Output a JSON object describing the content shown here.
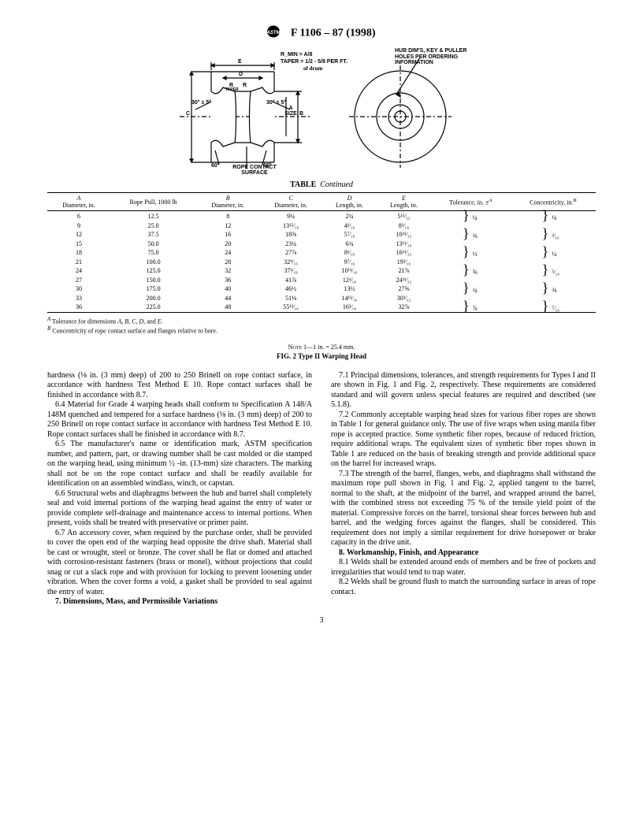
{
  "header": {
    "designation": "F 1106 – 87 (1998)"
  },
  "diagram": {
    "rmin_label": "R_MIN = A/8",
    "taper_label": "TAPER = 1/2 - 5/8 PER FT.",
    "of_drum": "of drum",
    "hub_label": "HUB DIM'S, KEY & PULLER HOLES PER ORDERING INFORMATION",
    "angle1": "30° ± 5°",
    "angle2": "30° ± 5°",
    "angle60a": "60°",
    "angle60b": "60°",
    "rope_contact": "ROPE CONTACT SURFACE",
    "a_size": "A SIZE",
    "labelE": "E",
    "labelD": "D",
    "labelR": "R",
    "labelTaper": "TAPER",
    "labelC": "C",
    "labelB": "B"
  },
  "table": {
    "title_bold": "TABLE",
    "title_italic": "Continued",
    "headers": {
      "col1a": "A",
      "col1b": "Diameter, in.",
      "col2": "Rope Pull, 1000 lb",
      "col3a": "B",
      "col3b": "Diameter, in.",
      "col4a": "C",
      "col4b": "Diameter, in.",
      "col5a": "D",
      "col5b": "Length, in.",
      "col6a": "E",
      "col6b": "Length, in.",
      "col7": "Tolerance, in. ±",
      "col7sup": "A",
      "col8": "Concentricity, in.",
      "col8sup": "B"
    },
    "rows": [
      {
        "a": "6",
        "rp": "12.5",
        "b": "8",
        "c": "9¼",
        "d": "2¾",
        "e": "5¹⁵⁄₃₂",
        "tol": "¼",
        "con": "⅛"
      },
      {
        "a": "9",
        "rp": "25.0",
        "b": "12",
        "c": "13¹⁵⁄₁₆",
        "d": "4¹⁄₁₆",
        "e": "8³⁄₁₆",
        "tol": "",
        "con": ""
      },
      {
        "a": "12",
        "rp": "37.5",
        "b": "16",
        "c": "18⅝",
        "d": "5⁷⁄₁₆",
        "e": "10³¹⁄₃₂",
        "tol": "⅜",
        "con": "³⁄₁₆"
      },
      {
        "a": "15",
        "rp": "50.0",
        "b": "20",
        "c": "23¼",
        "d": "6¾",
        "e": "13¹¹⁄₁₆",
        "tol": "",
        "con": ""
      },
      {
        "a": "18",
        "rp": "75.0",
        "b": "24",
        "c": "27⅞",
        "d": "8¹⁄₁₆",
        "e": "16¹³⁄₃₂",
        "tol": "½",
        "con": "¼"
      },
      {
        "a": "21",
        "rp": "100.0",
        "b": "28",
        "c": "32⁹⁄₁₆",
        "d": "9⁷⁄₁₆",
        "e": "19³⁄₁₆",
        "tol": "",
        "con": ""
      },
      {
        "a": "24",
        "rp": "125.0",
        "b": "32",
        "c": "37³⁄₁₆",
        "d": "10¹³⁄₁₆",
        "e": "21⅞",
        "tol": "⅝",
        "con": "⁵⁄₁₆"
      },
      {
        "a": "27",
        "rp": "150.0",
        "b": "36",
        "c": "41⅞",
        "d": "12³⁄₁₆",
        "e": "24³¹⁄₃₂",
        "tol": "",
        "con": ""
      },
      {
        "a": "30",
        "rp": "175.0",
        "b": "40",
        "c": "46½",
        "d": "13½",
        "e": "27⅝",
        "tol": "¾",
        "con": "⅜"
      },
      {
        "a": "33",
        "rp": "200.0",
        "b": "44",
        "c": "51⅛",
        "d": "14¹³⁄₁₆",
        "e": "30³⁄₃₂",
        "tol": "",
        "con": ""
      },
      {
        "a": "36",
        "rp": "225.0",
        "b": "48",
        "c": "55¹³⁄₁₆",
        "d": "16³⁄₁₆",
        "e": "32⅞",
        "tol": "⅞",
        "con": "⁷⁄₁₆"
      }
    ],
    "footnoteA_sup": "A",
    "footnoteA": " Tolerance for dimensions A, B, C, D, and E.",
    "footnoteB_sup": "B",
    "footnoteB": " Concentricity of rope contact surface and flanges relative to bore."
  },
  "figcaption": {
    "note": "NOTE 1—1 in. = 25.4 mm.",
    "title": "FIG. 2 Type II Warping Head"
  },
  "body": {
    "p1": "hardness (⅛ in. (3 mm) deep) of 200 to 250 Brinell on rope contact surface, in accordance with hardness Test Method E 10. Rope contact surfaces shall be finished in accordance with 8.7.",
    "p2": "6.4 Material for Grade 4 warping heads shall conform to Specification A 148/A 148M quenched and tempered for a surface hardness (⅛ in. (3 mm) deep) of 200 to 250 Brinell on rope contact surface in accordance with hardness Test Method E 10. Rope contact surfaces shall be finished in accordance with 8.7.",
    "p3": "6.5 The manufacturer's name or identification mark, ASTM specification number, and pattern, part, or drawing number shall be cast molded or die stamped on the warping head, using minimum ½ -in. (13-mm) size characters. The marking shall not be on the rope contact surface and shall be readily available for identification on an assembled windlass, winch, or capstan.",
    "p4": "6.6 Structural webs and diaphragms between the hub and barrel shall completely seal and void internal portions of the warping head against the entry of water or provide complete self-drainage and maintenance access to internal portions. When present, voids shall be treated with preservative or primer paint.",
    "p5": "6.7 An accessory cover, when required by the purchase order, shall be provided to cover the open end of the warping head opposite the drive shaft. Material shall be cast or wrought, steel or bronze. The cover shall be flat or domed and attached with corrosion-resistant fasteners (brass or monel), without projections that could snag or cut a slack rope and with provision for locking to prevent loosening under vibration. When the cover forms a void, a gasket shall be provided to seal against the entry of water.",
    "s7": "7. Dimensions, Mass, and Permissible Variations",
    "p6": "7.1 Principal dimensions, tolerances, and strength requirements for Types I and II are shown in Fig. 1 and Fig. 2, respectively. These requirements are considered standard and will govern unless special features are required and described (see 5.1.8).",
    "p7": "7.2 Commonly acceptable warping head sizes for various fiber ropes are shown in Table 1 for general guidance only. The use of five wraps when using manila fiber rope is accepted practice. Some synthetic fiber ropes, because of reduced friction, require additional wraps. The equivalent sizes of synthetic fiber ropes shown in Table 1 are reduced on the basis of breaking strength and provide additional space on the barrel for increased wraps.",
    "p8": "7.3 The strength of the barrel, flanges, webs, and diaphragms shall withstand the maximum rope pull shown in Fig. 1 and Fig. 2, applied tangent to the barrel, normal to the shaft, at the midpoint of the barrel, and wrapped around the barrel, with the combined stress not exceeding 75 % of the tensile yield point of the material. Compressive forces on the barrel, torsional shear forces between hub and barrel, and the wedging forces against the flanges, shall be considered. This requirement does not imply a similar requirement for drive horsepower or brake capacity in the drive unit.",
    "s8": "8. Workmanship, Finish, and Appearance",
    "p9": "8.1 Welds shall be extended around ends of members and be free of pockets and irregularities that would tend to trap water.",
    "p10": "8.2 Welds shall be ground flush to match the surrounding surface in areas of rope contact."
  },
  "page_num": "3"
}
